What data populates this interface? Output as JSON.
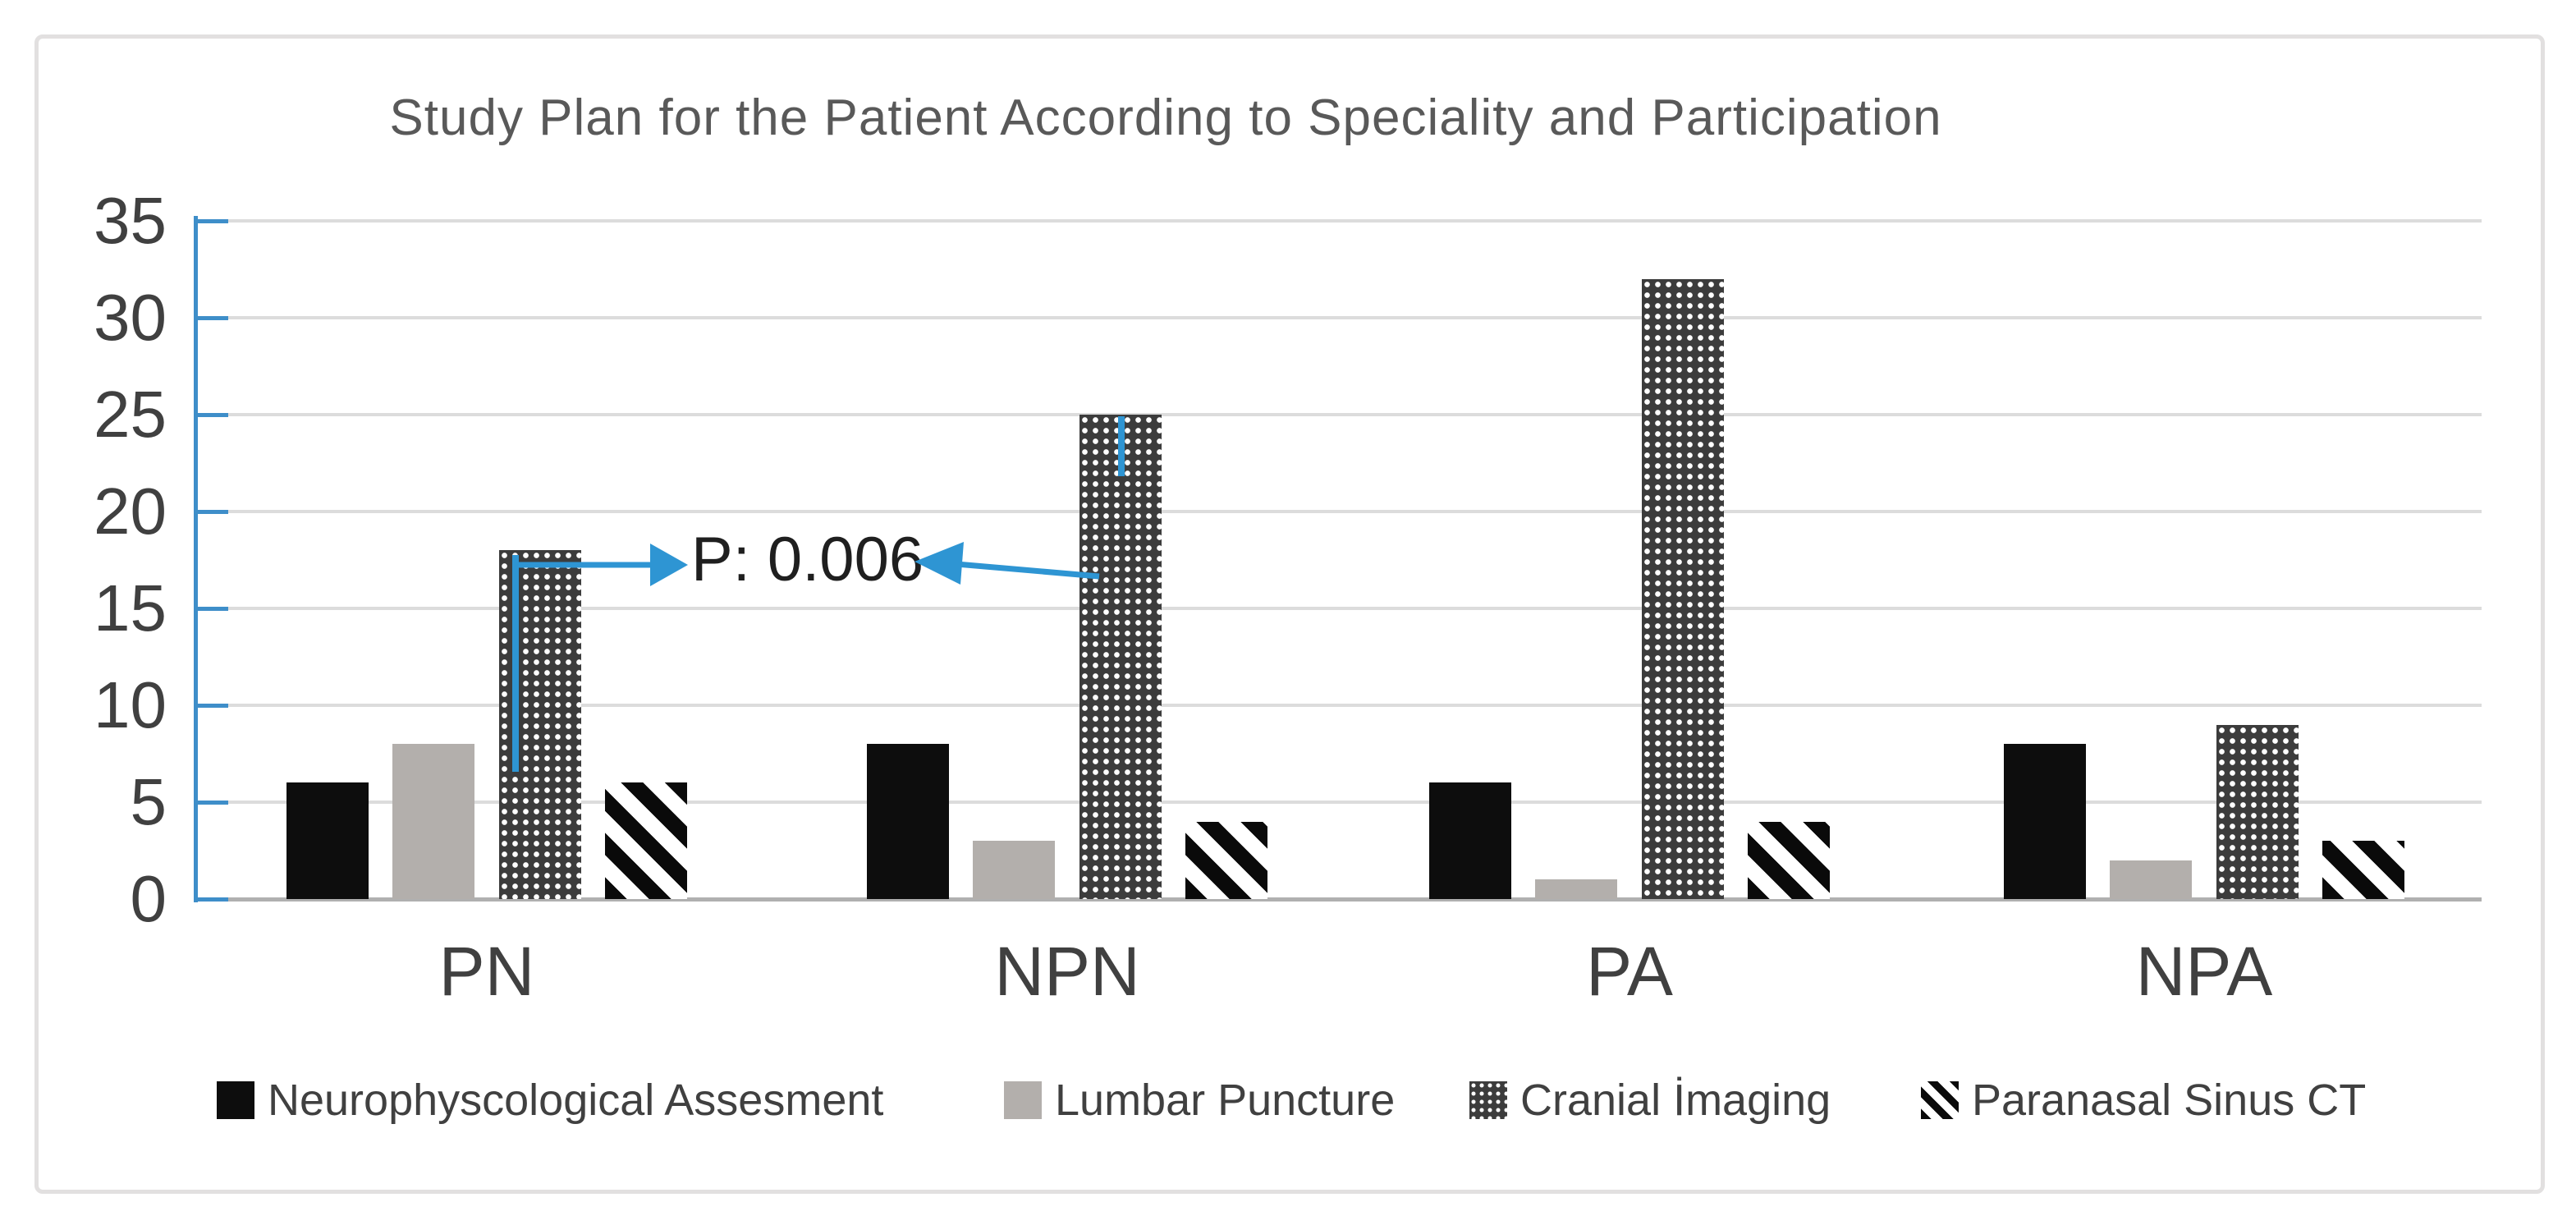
{
  "figure": {
    "title": "Study Plan for the Patient According to Speciality and Participation"
  },
  "chart_data": {
    "type": "bar",
    "title": "Study Plan for the Patient According to Speciality and Participation",
    "categories": [
      "PN",
      "NPN",
      "PA",
      "NPA"
    ],
    "series": [
      {
        "name": "Neurophyscological Assesment",
        "pattern": "solid-black",
        "color": "#0d0d0d",
        "values": [
          6,
          8,
          6,
          8
        ]
      },
      {
        "name": "Lumbar Puncture",
        "pattern": "solid-gray",
        "color": "#b3afac",
        "values": [
          8,
          3,
          1,
          2
        ]
      },
      {
        "name": "Cranial İmaging",
        "pattern": "dotted-grid",
        "color": "#3c3c3c",
        "values": [
          18,
          25,
          32,
          9
        ]
      },
      {
        "name": "Paranasal Sinus CT",
        "pattern": "diagonal-stripes",
        "color": "#0a0a0a",
        "values": [
          6,
          4,
          4,
          3
        ]
      }
    ],
    "xlabel": "",
    "ylabel": "",
    "ylim": [
      0,
      35
    ],
    "ytick_labels": [
      "0",
      "5",
      "10",
      "15",
      "20",
      "25",
      "30",
      "35"
    ],
    "grid": "horizontal",
    "legend_position": "bottom",
    "axis_color": "#3e8ec9",
    "gridline_color": "#dcdcdc",
    "annotation": {
      "text": "P: 0.006",
      "arrow_color": "#2e95d3",
      "connects": [
        "Cranial İmaging @ PN",
        "Cranial İmaging @ NPN"
      ]
    }
  }
}
